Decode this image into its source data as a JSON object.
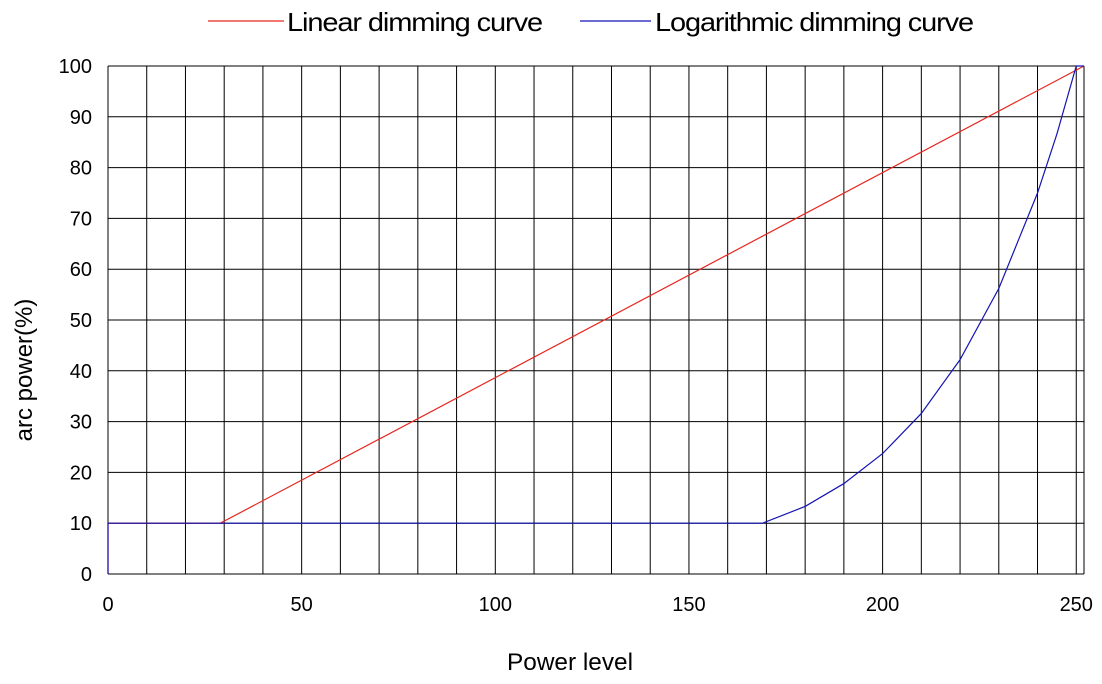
{
  "chart_data": {
    "type": "line",
    "title": "",
    "xlabel": "Power level",
    "ylabel": "arc power(%)",
    "xlim": [
      0,
      252
    ],
    "ylim": [
      0,
      100
    ],
    "x_tick_values": [
      0,
      50,
      100,
      150,
      200,
      250
    ],
    "x_ticks": [
      "0",
      "50",
      "100",
      "150",
      "200",
      "250"
    ],
    "y_tick_values": [
      0,
      10,
      20,
      30,
      40,
      50,
      60,
      70,
      80,
      90,
      100
    ],
    "y_ticks": [
      "0",
      "10",
      "20",
      "30",
      "40",
      "50",
      "60",
      "70",
      "80",
      "90",
      "100"
    ],
    "grid": true,
    "legend_position": "top",
    "series": [
      {
        "name": "Linear dimming curve",
        "color": "#e8261e",
        "x": [
          0,
          0,
          29,
          252
        ],
        "y": [
          0,
          10,
          10,
          100
        ]
      },
      {
        "name": "Logarithmic dimming curve",
        "color": "#1414b4",
        "x": [
          0,
          0,
          169,
          180,
          190,
          200,
          210,
          220,
          230,
          240,
          245,
          250,
          252
        ],
        "y": [
          0,
          10,
          10,
          13.3,
          17.8,
          23.7,
          31.6,
          42.2,
          56.2,
          75.0,
          86.6,
          100,
          100
        ]
      }
    ]
  }
}
